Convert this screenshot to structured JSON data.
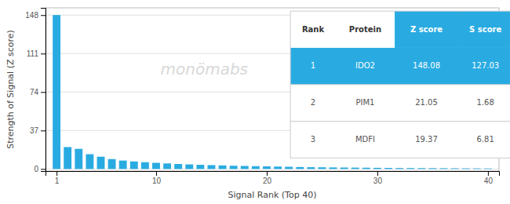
{
  "chart_data": {
    "type": "bar",
    "xlabel": "Signal Rank (Top 40)",
    "ylabel": "Strength of Signal (Z score)",
    "x": [
      1,
      2,
      3,
      4,
      5,
      6,
      7,
      8,
      9,
      10,
      11,
      12,
      13,
      14,
      15,
      16,
      17,
      18,
      19,
      20,
      21,
      22,
      23,
      24,
      25,
      26,
      27,
      28,
      29,
      30,
      31,
      32,
      33,
      34,
      35,
      36,
      37,
      38,
      39,
      40
    ],
    "values": [
      148.08,
      21.05,
      19.37,
      14.2,
      11.8,
      9.5,
      8.1,
      7.2,
      6.5,
      5.9,
      5.3,
      4.8,
      4.4,
      4.0,
      3.7,
      3.4,
      3.1,
      2.9,
      2.7,
      2.5,
      2.3,
      2.1,
      1.9,
      1.7,
      1.6,
      1.5,
      1.4,
      1.3,
      1.2,
      1.1,
      1.0,
      0.9,
      0.85,
      0.8,
      0.75,
      0.7,
      0.65,
      0.6,
      0.55,
      0.5
    ],
    "color": "#29ABE2",
    "xlim": [
      0,
      41
    ],
    "xticks": [
      1,
      10,
      20,
      30,
      40
    ],
    "ylim": [
      -2,
      155
    ],
    "yticks": [
      0,
      37,
      74,
      111,
      148
    ],
    "grid": true,
    "annotations": [
      "monömabs"
    ],
    "table": [
      [
        "Rank",
        "Protein",
        "Z score",
        "S score"
      ],
      [
        1,
        "IDO2",
        148.08,
        127.03
      ],
      [
        2,
        "PIM1",
        21.05,
        1.68
      ],
      [
        3,
        "MDFI",
        19.37,
        6.81
      ]
    ]
  }
}
